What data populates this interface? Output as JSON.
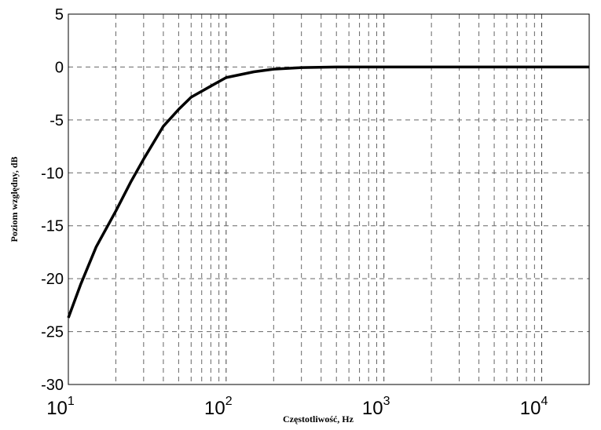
{
  "chart_data": {
    "type": "line",
    "title": "",
    "xlabel": "Częstotliwość, Hz",
    "ylabel": "Poziom względny, dB",
    "xscale": "log",
    "xlim": [
      10,
      20000
    ],
    "ylim": [
      -30,
      5
    ],
    "yticks": [
      5,
      0,
      -5,
      -10,
      -15,
      -20,
      -25,
      -30
    ],
    "ytick_labels": [
      "5",
      "0",
      "-5",
      "-10",
      "-15",
      "-20",
      "-25",
      "-30"
    ],
    "xticks": [
      10,
      100,
      1000,
      10000
    ],
    "xtick_labels": [
      {
        "base": "10",
        "exp": "1"
      },
      {
        "base": "10",
        "exp": "2"
      },
      {
        "base": "10",
        "exp": "3"
      },
      {
        "base": "10",
        "exp": "4"
      }
    ],
    "grid": true,
    "grid_style": "dashed",
    "series": [
      {
        "color": "#000000",
        "x": [
          10,
          12,
          15,
          20,
          25,
          30,
          40,
          50,
          60,
          80,
          100,
          150,
          200,
          300,
          500,
          1000,
          5000,
          20000
        ],
        "y": [
          -23.7,
          -20.5,
          -17.0,
          -13.6,
          -10.8,
          -8.7,
          -5.6,
          -4.0,
          -2.85,
          -1.8,
          -1.0,
          -0.45,
          -0.2,
          -0.05,
          0,
          0,
          0,
          0
        ]
      }
    ]
  }
}
